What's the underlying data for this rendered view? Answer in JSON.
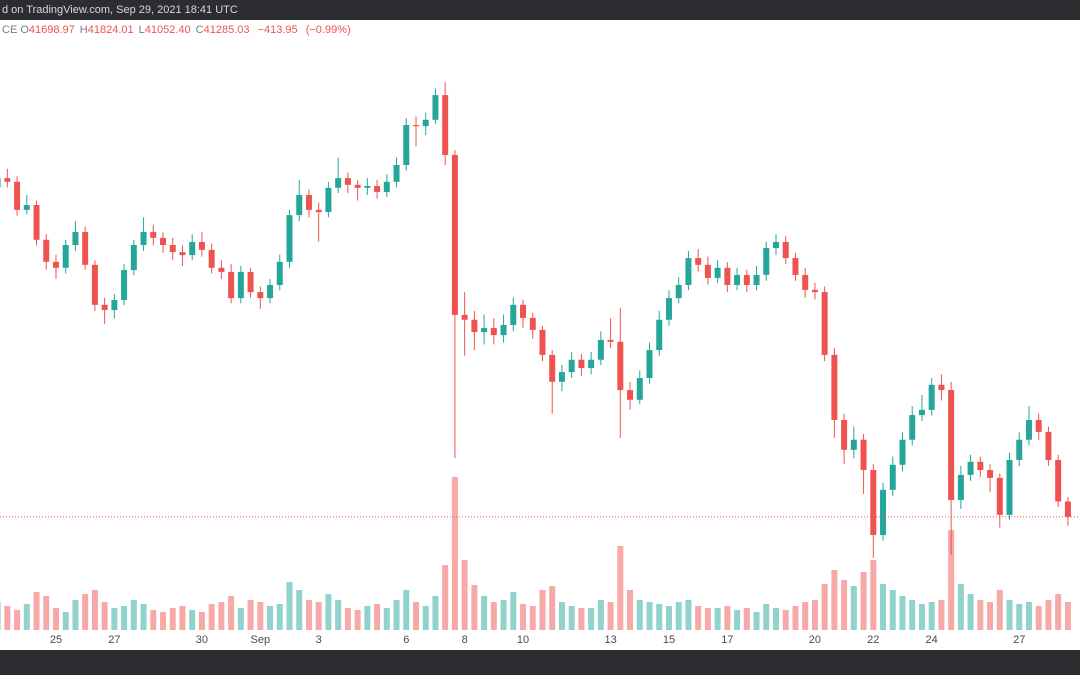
{
  "chart_data": {
    "type": "candlestick",
    "source": "d on TradingView.com, Sep 29, 2021 18:41 UTC",
    "symbol": "CE",
    "legend_values": [
      {
        "key": "O",
        "value": 41698.97
      },
      {
        "key": "H",
        "value": 41824.01
      },
      {
        "key": "L",
        "value": 41052.4,
        "label": "41052.40"
      },
      {
        "key": "C",
        "value": 41285.03
      }
    ],
    "change": {
      "value": -413.95,
      "label": "−413.95"
    },
    "change_pct": {
      "value": -0.99,
      "label": "(−0.99%)"
    },
    "up_color": "#26a69a",
    "down_color": "#ef5350",
    "ylim": [
      38260,
      54580
    ],
    "volume_ylim": [
      0,
      610
    ],
    "categories": [
      null,
      null,
      null,
      null,
      null,
      null,
      "25",
      null,
      null,
      null,
      null,
      null,
      "27",
      null,
      null,
      null,
      null,
      null,
      null,
      null,
      null,
      "30",
      null,
      null,
      null,
      null,
      null,
      "Sep",
      null,
      null,
      null,
      null,
      null,
      "3",
      null,
      null,
      null,
      null,
      null,
      null,
      null,
      null,
      "6",
      null,
      null,
      null,
      null,
      null,
      "8",
      null,
      null,
      null,
      null,
      null,
      "10",
      null,
      null,
      null,
      null,
      null,
      null,
      null,
      null,
      "13",
      null,
      null,
      null,
      null,
      null,
      "15",
      null,
      null,
      null,
      null,
      null,
      "17",
      null,
      null,
      null,
      null,
      null,
      null,
      null,
      null,
      "20",
      null,
      null,
      null,
      null,
      null,
      "22",
      null,
      null,
      null,
      null,
      null,
      "24",
      null,
      null,
      null,
      null,
      null,
      null,
      null,
      null,
      "27",
      null,
      null,
      null,
      null,
      null
    ],
    "open": [
      50100,
      50350,
      50250,
      49500,
      49630,
      48700,
      48110,
      47950,
      48560,
      48910,
      48030,
      46960,
      46820,
      47090,
      47890,
      48560,
      48910,
      48750,
      48560,
      48370,
      48290,
      48640,
      48430,
      47950,
      47840,
      47140,
      47840,
      47300,
      47140,
      47490,
      48110,
      49360,
      49900,
      49500,
      49440,
      50090,
      50350,
      50170,
      50090,
      50140,
      49980,
      50250,
      50700,
      51770,
      51740,
      51910,
      52570,
      50970,
      46690,
      46560,
      46230,
      46340,
      46150,
      46420,
      46960,
      46610,
      46290,
      45620,
      44900,
      45160,
      45490,
      45270,
      45490,
      46020,
      45970,
      44680,
      44420,
      45000,
      45750,
      46560,
      47140,
      47490,
      48210,
      48030,
      47680,
      47950,
      47490,
      47760,
      47490,
      47760,
      48480,
      48640,
      48210,
      47760,
      47360,
      47300,
      45620,
      43880,
      43080,
      43350,
      42540,
      40800,
      42010,
      42680,
      43350,
      44010,
      44150,
      44820,
      44680,
      41740,
      42410,
      42760,
      42540,
      42330,
      41340,
      42810,
      43350,
      43880,
      43560,
      42810,
      41698.97
    ],
    "high": [
      50520,
      50600,
      50400,
      49900,
      49750,
      48850,
      48300,
      48700,
      49200,
      49050,
      48150,
      47150,
      47250,
      48050,
      48700,
      49300,
      49100,
      48900,
      48750,
      48550,
      48850,
      48900,
      48600,
      48150,
      48050,
      48000,
      47950,
      47450,
      47650,
      48300,
      49500,
      50300,
      50050,
      49700,
      50250,
      50900,
      50500,
      50300,
      50350,
      50300,
      50450,
      50900,
      51950,
      52000,
      52100,
      52750,
      52920,
      51100,
      47300,
      46800,
      46700,
      46600,
      46700,
      47150,
      47100,
      46750,
      46400,
      45750,
      45350,
      45700,
      45650,
      45700,
      46250,
      46600,
      46880,
      44900,
      45200,
      45950,
      46800,
      47350,
      47700,
      48400,
      48450,
      48250,
      48150,
      48100,
      47950,
      47900,
      48000,
      48650,
      48850,
      48800,
      48350,
      47950,
      47550,
      47450,
      45800,
      44050,
      43700,
      43500,
      42700,
      42200,
      42900,
      43550,
      44250,
      44550,
      45000,
      45100,
      44900,
      42650,
      42950,
      42900,
      42700,
      42450,
      43000,
      43550,
      44250,
      44050,
      43700,
      42950,
      41824.01
    ],
    "low": [
      49950,
      50100,
      49350,
      49380,
      48550,
      47900,
      47650,
      47800,
      48400,
      47900,
      46800,
      46450,
      46600,
      46950,
      47750,
      48400,
      48550,
      48350,
      48150,
      48000,
      48150,
      48250,
      47800,
      47650,
      47000,
      47000,
      47150,
      46850,
      47000,
      47350,
      47950,
      49200,
      49300,
      48650,
      49300,
      49950,
      49950,
      49750,
      49900,
      49800,
      49850,
      50100,
      50550,
      51200,
      51500,
      51800,
      50700,
      42860,
      45600,
      45750,
      45900,
      45900,
      45950,
      46250,
      46350,
      46050,
      45450,
      44050,
      44650,
      45000,
      45050,
      45100,
      45350,
      45800,
      43400,
      44150,
      44300,
      44850,
      45600,
      46400,
      47000,
      47350,
      47850,
      47500,
      47550,
      47300,
      47350,
      47300,
      47350,
      47600,
      48300,
      48050,
      47600,
      47150,
      47100,
      45450,
      43400,
      42700,
      42850,
      41900,
      40190,
      40650,
      41850,
      42500,
      43200,
      43850,
      44000,
      44400,
      40270,
      41500,
      42250,
      42350,
      41950,
      41000,
      41200,
      42650,
      43200,
      43350,
      42650,
      41550,
      41052.4
    ],
    "close": [
      50350,
      50250,
      49500,
      49630,
      48700,
      48110,
      47950,
      48560,
      48910,
      48030,
      46960,
      46820,
      47090,
      47890,
      48560,
      48910,
      48750,
      48560,
      48370,
      48290,
      48640,
      48430,
      47950,
      47840,
      47140,
      47840,
      47300,
      47140,
      47490,
      48110,
      49360,
      49900,
      49500,
      49440,
      50090,
      50350,
      50170,
      50090,
      50140,
      49980,
      50250,
      50700,
      51770,
      51740,
      51910,
      52570,
      50970,
      46690,
      46560,
      46230,
      46340,
      46150,
      46420,
      46960,
      46610,
      46290,
      45620,
      44900,
      45160,
      45490,
      45270,
      45490,
      46020,
      45970,
      44680,
      44420,
      45000,
      45750,
      46560,
      47140,
      47490,
      48210,
      48030,
      47680,
      47950,
      47490,
      47760,
      47490,
      47760,
      48480,
      48640,
      48210,
      47760,
      47360,
      47300,
      45620,
      43880,
      43080,
      43350,
      42540,
      40800,
      42010,
      42680,
      43350,
      44010,
      44150,
      44820,
      44680,
      41740,
      42410,
      42760,
      42540,
      42330,
      41340,
      42810,
      43350,
      43880,
      43560,
      42810,
      41698.97,
      41285.03
    ],
    "volume": [
      28,
      24,
      20,
      26,
      38,
      34,
      22,
      18,
      30,
      36,
      40,
      28,
      22,
      24,
      30,
      26,
      20,
      18,
      22,
      24,
      20,
      18,
      26,
      28,
      34,
      22,
      30,
      28,
      24,
      26,
      48,
      40,
      30,
      28,
      36,
      30,
      22,
      20,
      24,
      26,
      22,
      30,
      40,
      28,
      24,
      34,
      65,
      153,
      70,
      45,
      34,
      28,
      30,
      38,
      26,
      24,
      40,
      44,
      28,
      24,
      22,
      22,
      30,
      28,
      84,
      40,
      30,
      28,
      26,
      24,
      28,
      30,
      24,
      22,
      22,
      24,
      20,
      22,
      18,
      26,
      22,
      20,
      24,
      28,
      30,
      46,
      60,
      50,
      44,
      58,
      70,
      46,
      40,
      34,
      30,
      26,
      28,
      30,
      100,
      46,
      36,
      30,
      28,
      40,
      30,
      26,
      28,
      24,
      30,
      36,
      28
    ]
  }
}
